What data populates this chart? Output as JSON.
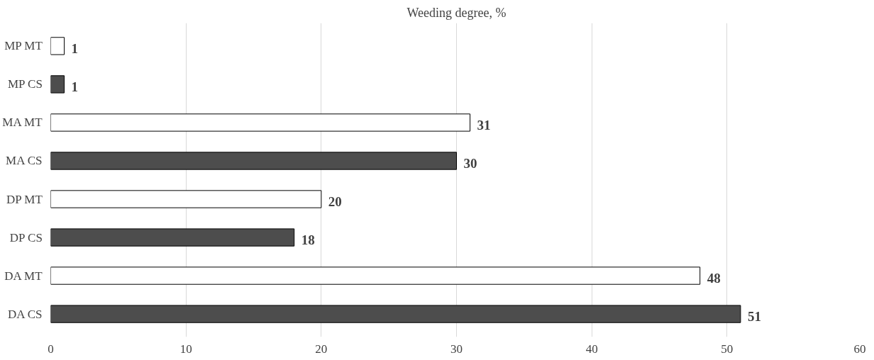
{
  "chart_data": {
    "type": "bar",
    "orientation": "horizontal",
    "title": "Weeding degree, %",
    "categories": [
      "MP MT",
      "MP CS",
      "MA MT",
      "MA CS",
      "DP MT",
      "DP CS",
      "DA MT",
      "DA CS"
    ],
    "values": [
      1,
      1,
      31,
      30,
      20,
      18,
      48,
      51
    ],
    "colors": [
      "#ffffff",
      "#4d4d4d",
      "#ffffff",
      "#4d4d4d",
      "#ffffff",
      "#4d4d4d",
      "#ffffff",
      "#4d4d4d"
    ],
    "xlim": [
      0,
      60
    ],
    "xticks": [
      0,
      10,
      20,
      30,
      40,
      50,
      60
    ],
    "grid": "x",
    "data_labels": true
  }
}
